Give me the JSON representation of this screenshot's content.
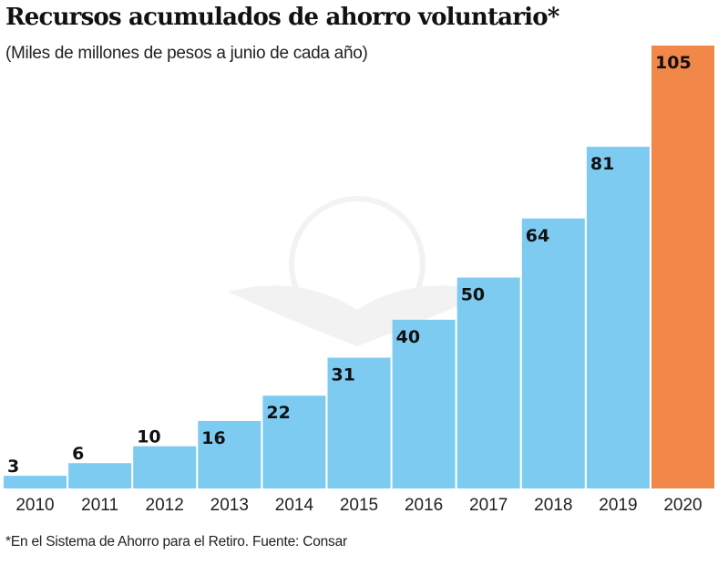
{
  "chart_data": {
    "type": "bar",
    "title": "Recursos acumulados de ahorro voluntario*",
    "subtitle": "(Miles de millones de pesos a junio de cada año)",
    "footnote": "*En el Sistema de Ahorro para el Retiro. Fuente: Consar",
    "categories": [
      "2010",
      "2011",
      "2012",
      "2013",
      "2014",
      "2015",
      "2016",
      "2017",
      "2018",
      "2019",
      "2020"
    ],
    "values": [
      3,
      6,
      10,
      16,
      22,
      31,
      40,
      50,
      64,
      81,
      105
    ],
    "ylim": [
      0,
      105
    ],
    "grid": false,
    "colors": {
      "default": "#7ecbf2",
      "highlight": "#f2874a"
    },
    "highlight_category": "2020"
  }
}
